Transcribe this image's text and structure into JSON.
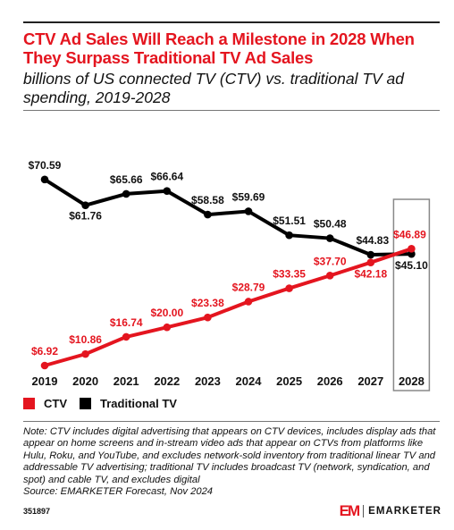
{
  "title": "CTV Ad Sales Will Reach a Milestone in 2028 When They Surpass Traditional TV Ad Sales",
  "subtitle": "billions of US connected TV (CTV) vs. traditional TV ad spending, 2019-2028",
  "colors": {
    "ctv": "#e4151f",
    "traditional": "#000000",
    "title": "#e4151f"
  },
  "chart_data": {
    "type": "line",
    "categories": [
      "2019",
      "2020",
      "2021",
      "2022",
      "2023",
      "2024",
      "2025",
      "2026",
      "2027",
      "2028"
    ],
    "series": [
      {
        "name": "CTV",
        "values": [
          6.92,
          10.86,
          16.74,
          20.0,
          23.38,
          28.79,
          33.35,
          37.7,
          42.18,
          46.89
        ],
        "labels": [
          "$6.92",
          "$10.86",
          "$16.74",
          "$20.00",
          "$23.38",
          "$28.79",
          "$33.35",
          "$37.70",
          "$42.18",
          "$46.89"
        ]
      },
      {
        "name": "Traditional TV",
        "values": [
          70.59,
          61.76,
          65.66,
          66.64,
          58.58,
          59.69,
          51.51,
          50.48,
          44.83,
          45.1
        ],
        "labels": [
          "$70.59",
          "$61.76",
          "$65.66",
          "$66.64",
          "$58.58",
          "$59.69",
          "$51.51",
          "$50.48",
          "$44.83",
          "$45.10"
        ]
      }
    ],
    "highlight_category": "2028",
    "legend_position": "bottom-left",
    "grid": false
  },
  "note": "Note: CTV includes digital advertising that appears on CTV devices, includes display ads that appear on home screens and in-stream video ads that appear on CTVs from platforms like Hulu, Roku, and YouTube, and excludes network-sold inventory from traditional linear TV and addressable TV advertising; traditional TV includes broadcast TV (network, syndication, and spot) and cable TV, and excludes digital",
  "source": "Source: EMARKETER Forecast, Nov 2024",
  "chart_id": "351897",
  "brand": {
    "mark": "EM",
    "name": "EMARKETER"
  }
}
